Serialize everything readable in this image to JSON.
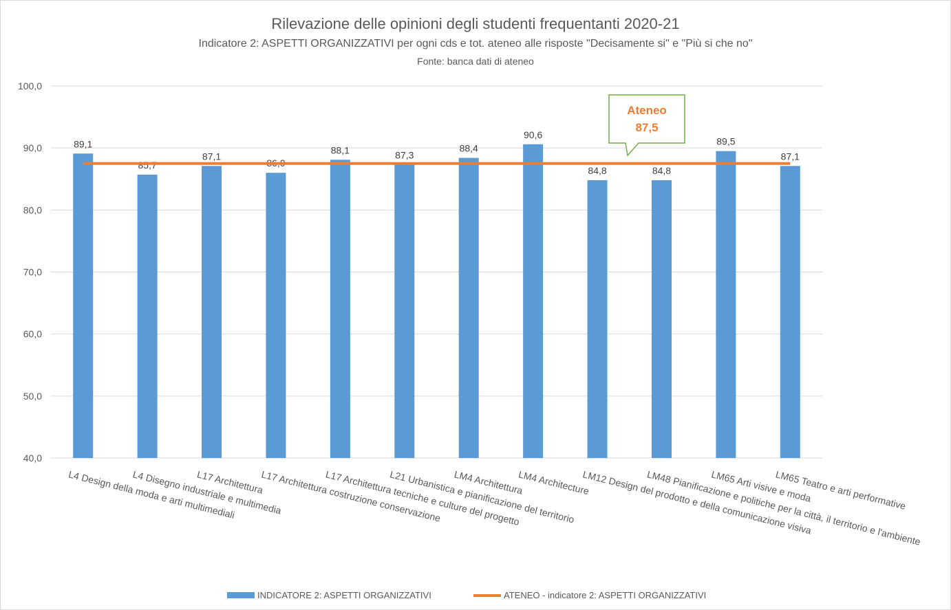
{
  "chart_data": {
    "type": "bar",
    "title": "Rilevazione delle opinioni degli studenti frequentanti 2020-21",
    "subtitle": "Indicatore 2: ASPETTI ORGANIZZATIVI per ogni cds e tot. ateneo alle risposte \"Decisamente si\" e \"Più si che no\"",
    "source": "Fonte: banca dati di ateneo",
    "categories": [
      "L4 Design della moda e arti multimediali",
      "L4 Disegno industriale e multimedia",
      "L17 Architettura",
      "L17 Architettura costruzione conservazione",
      "L17 Architettura tecniche e culture del progetto",
      "L21 Urbanistica e pianificazione del territorio",
      "LM4 Architettura",
      "LM4 Architecture",
      "LM12 Design del prodotto e della comunicazione visiva",
      "LM48 Pianificazione e politiche per la città, il territorio e l'ambiente",
      "LM65 Arti visive e moda",
      "LM65 Teatro e arti performative"
    ],
    "series": [
      {
        "name": "INDICATORE 2: ASPETTI ORGANIZZATIVI",
        "type": "bar",
        "color": "#5b9bd5",
        "values": [
          89.1,
          85.7,
          87.1,
          86.0,
          88.1,
          87.3,
          88.4,
          90.6,
          84.8,
          84.8,
          89.5,
          87.1
        ],
        "labels": [
          "89,1",
          "85,7",
          "87,1",
          "86,0",
          "88,1",
          "87,3",
          "88,4",
          "90,6",
          "84,8",
          "84,8",
          "89,5",
          "87,1"
        ]
      },
      {
        "name": "ATENEO - indicatore 2: ASPETTI ORGANIZZATIVI",
        "type": "line",
        "color": "#ed7d31",
        "value": 87.5
      }
    ],
    "ylim": [
      40,
      100
    ],
    "yticks": [
      "40,0",
      "50,0",
      "60,0",
      "70,0",
      "80,0",
      "90,0",
      "100,0"
    ],
    "ytick_values": [
      40,
      50,
      60,
      70,
      80,
      90,
      100
    ],
    "grid": true,
    "legend_position": "bottom",
    "callout": {
      "line1": "Ateneo",
      "line2": "87,5",
      "color": "#ed7d31",
      "border": "#70ad47"
    }
  }
}
